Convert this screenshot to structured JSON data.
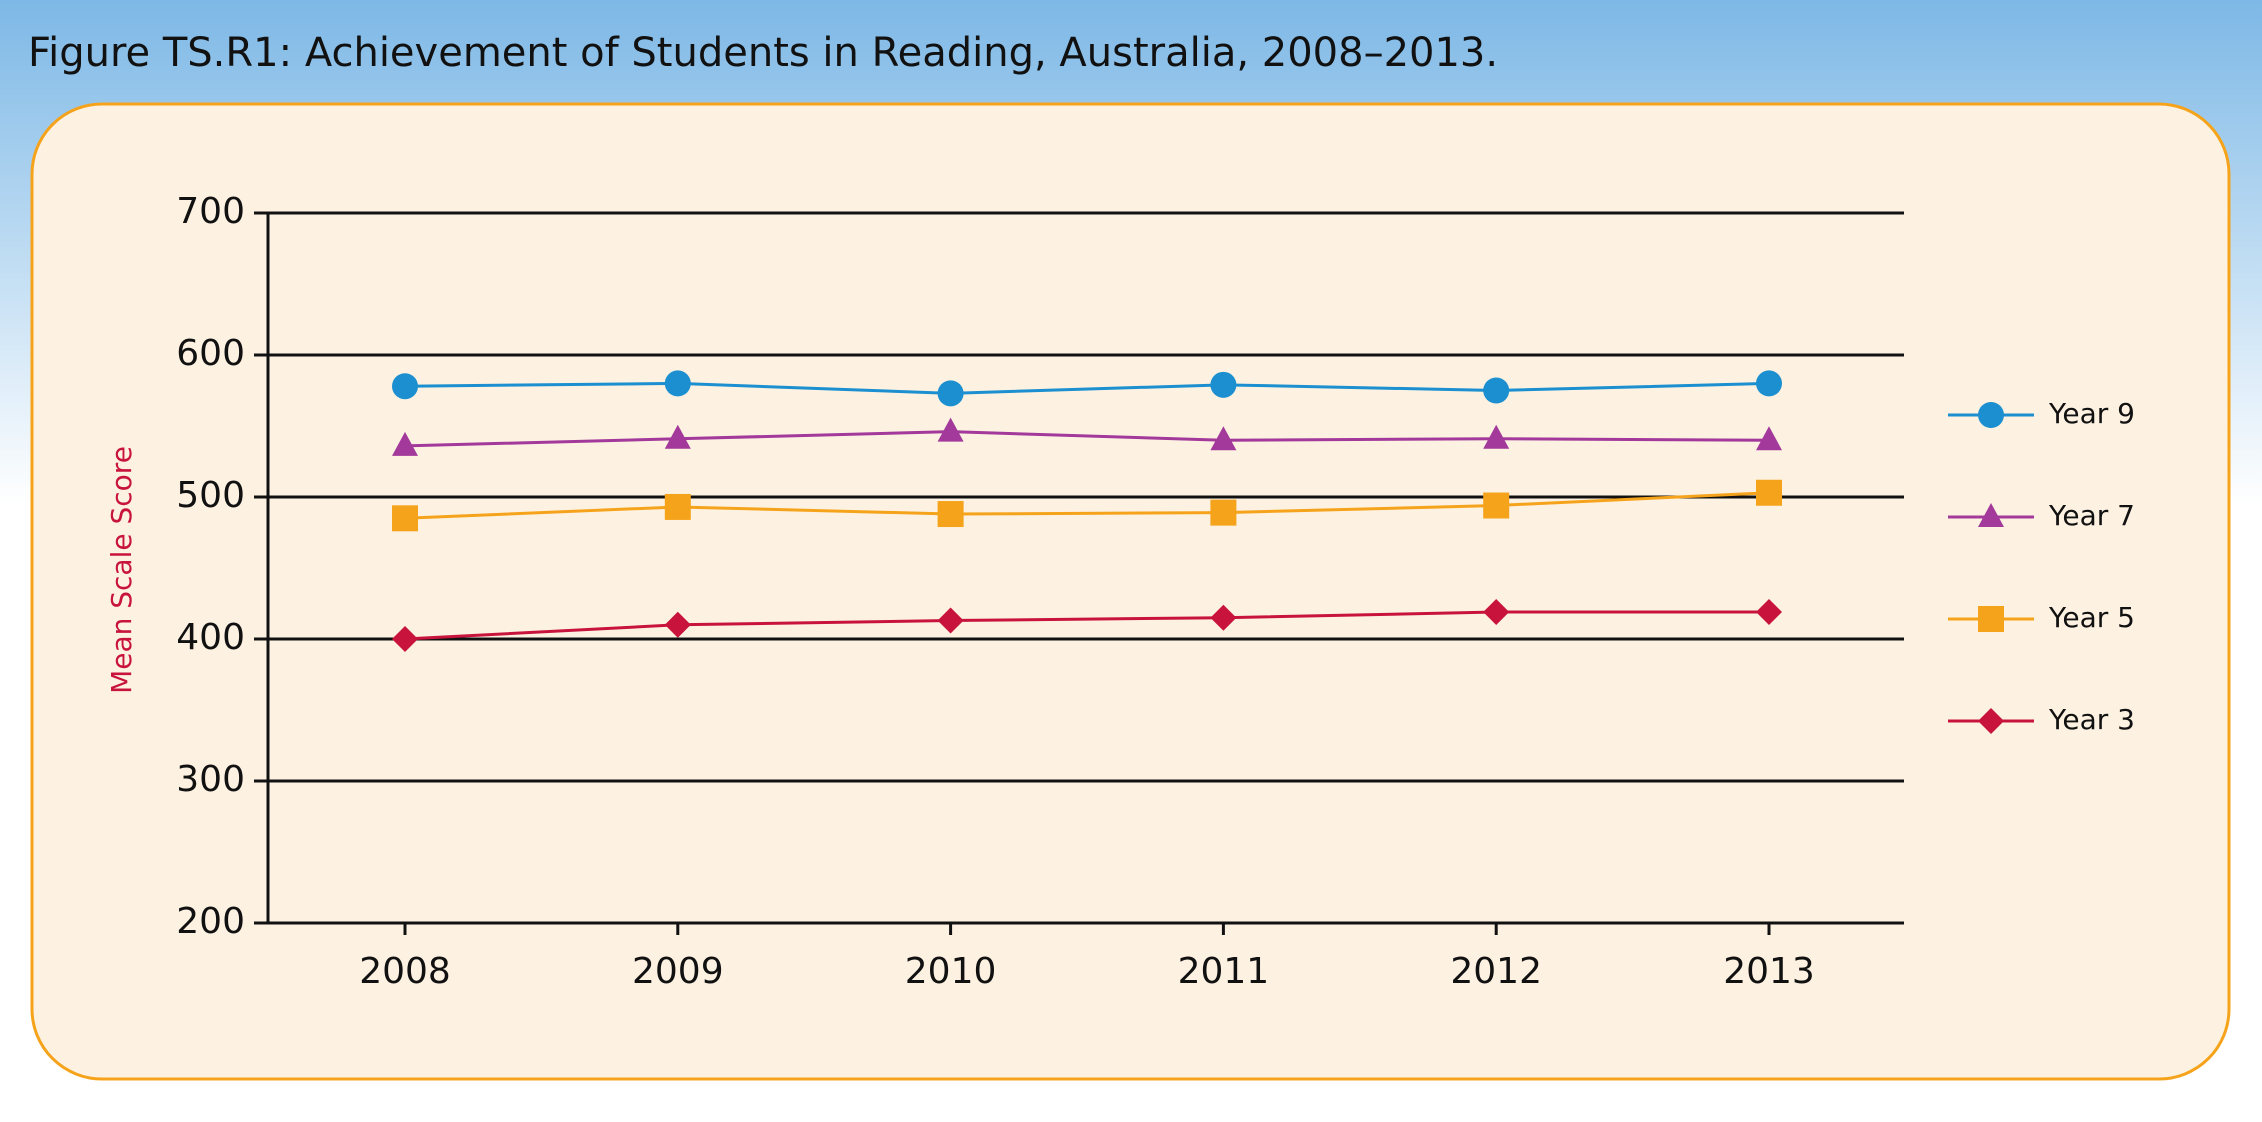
{
  "chart_data": {
    "type": "line",
    "title": "Figure TS.R1: Achievement of Students in Reading, Australia, 2008–2013.",
    "y_label": "Mean Scale Score",
    "categories": [
      "2008",
      "2009",
      "2010",
      "2011",
      "2012",
      "2013"
    ],
    "series": [
      {
        "name": "Year 9",
        "color": "#1b8fd0",
        "marker": "circle",
        "values": [
          578,
          580,
          573,
          579,
          575,
          580
        ]
      },
      {
        "name": "Year 7",
        "color": "#a2399b",
        "marker": "triangle",
        "values": [
          536,
          541,
          546,
          540,
          541,
          540
        ]
      },
      {
        "name": "Year 5",
        "color": "#f6a31c",
        "marker": "square",
        "values": [
          485,
          493,
          488,
          489,
          494,
          503
        ]
      },
      {
        "name": "Year 3",
        "color": "#c8143c",
        "marker": "diamond",
        "values": [
          400,
          410,
          413,
          415,
          419,
          419
        ]
      }
    ],
    "ylim": [
      200,
      700
    ],
    "yticks": [
      200,
      300,
      400,
      500,
      600,
      700
    ],
    "grid": true,
    "legend": "right"
  }
}
